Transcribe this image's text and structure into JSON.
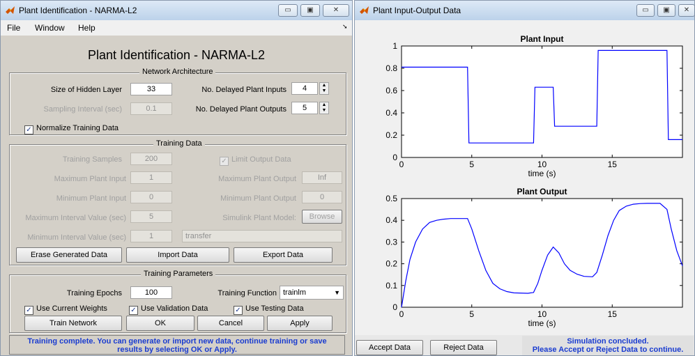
{
  "left_window": {
    "title": "Plant Identification - NARMA-L2",
    "window_buttons": [
      "▭",
      "▣",
      "✕"
    ],
    "menu": [
      "File",
      "Window",
      "Help"
    ],
    "menu_arrow": "➘",
    "heading": "Plant Identification - NARMA-L2",
    "network_architecture": {
      "title": "Network Architecture",
      "hidden_layer_label": "Size of Hidden Layer",
      "hidden_layer_value": "33",
      "sampling_label": "Sampling Interval (sec)",
      "sampling_value": "0.1",
      "delayed_inputs_label": "No. Delayed Plant Inputs",
      "delayed_inputs_value": "4",
      "delayed_outputs_label": "No. Delayed Plant Outputs",
      "delayed_outputs_value": "5",
      "normalize_label": "Normalize Training Data"
    },
    "training_data": {
      "title": "Training Data",
      "samples_label": "Training Samples",
      "samples_value": "200",
      "limit_label": "Limit Output Data",
      "max_input_label": "Maximum Plant Input",
      "max_input_value": "1",
      "max_output_label": "Maximum Plant Output",
      "max_output_value": "Inf",
      "min_input_label": "Minimum Plant Input",
      "min_input_value": "0",
      "min_output_label": "Minimum Plant Output",
      "min_output_value": "0",
      "max_interval_label": "Maximum Interval Value (sec)",
      "max_interval_value": "5",
      "simulink_label": "Simulink Plant Model:",
      "browse_label": "Browse",
      "min_interval_label": "Minimum Interval Value (sec)",
      "min_interval_value": "1",
      "model_value": "transfer",
      "erase_label": "Erase Generated Data",
      "import_label": "Import Data",
      "export_label": "Export Data"
    },
    "training_parameters": {
      "title": "Training Parameters",
      "epochs_label": "Training Epochs",
      "epochs_value": "100",
      "function_label": "Training Function",
      "function_value": "trainlm",
      "current_weights_label": "Use Current Weights",
      "validation_label": "Use Validation Data",
      "testing_label": "Use Testing Data",
      "train_label": "Train Network",
      "ok_label": "OK",
      "cancel_label": "Cancel",
      "apply_label": "Apply"
    },
    "status_line1": "Training complete. You can generate or import new data, continue training or save",
    "status_line2": "results by selecting OK or Apply."
  },
  "right_window": {
    "title": "Plant Input-Output Data",
    "window_buttons": [
      "▭",
      "▣",
      "✕"
    ],
    "accept_label": "Accept Data",
    "reject_label": "Reject Data",
    "status_line1": "Simulation concluded.",
    "status_line2": "Please Accept or Reject Data to continue."
  },
  "chart_data": [
    {
      "type": "line",
      "title": "Plant Input",
      "xlabel": "time (s)",
      "ylabel": "",
      "xlim": [
        0,
        20
      ],
      "ylim": [
        0,
        1
      ],
      "xticks": [
        0,
        5,
        10,
        15
      ],
      "yticks": [
        0,
        0.2,
        0.4,
        0.6,
        0.8,
        1
      ],
      "ytick_labels": [
        "0",
        "0.2",
        "0.4",
        "0.6",
        "0.8",
        "1"
      ],
      "color": "#0000ff",
      "x": [
        0,
        4.7,
        4.8,
        9.4,
        9.5,
        10.8,
        10.9,
        13.9,
        14.0,
        18.9,
        19.0,
        20
      ],
      "y": [
        0.81,
        0.81,
        0.13,
        0.13,
        0.63,
        0.63,
        0.28,
        0.28,
        0.96,
        0.96,
        0.16,
        0.16
      ]
    },
    {
      "type": "line",
      "title": "Plant Output",
      "xlabel": "time (s)",
      "ylabel": "",
      "xlim": [
        0,
        20
      ],
      "ylim": [
        0,
        0.5
      ],
      "xticks": [
        0,
        5,
        10,
        15
      ],
      "yticks": [
        0,
        0.1,
        0.2,
        0.3,
        0.4,
        0.5
      ],
      "ytick_labels": [
        "0",
        "0.1",
        "0.2",
        "0.3",
        "0.4",
        "0.5"
      ],
      "color": "#0000ff",
      "x": [
        0,
        0.3,
        0.6,
        1.0,
        1.5,
        2.0,
        2.5,
        3.0,
        3.5,
        4.0,
        4.7,
        5.0,
        5.5,
        6.0,
        6.5,
        7.0,
        7.5,
        8.0,
        9.0,
        9.4,
        9.7,
        10.0,
        10.4,
        10.8,
        11.2,
        11.6,
        12.0,
        12.5,
        13.0,
        13.6,
        13.9,
        14.3,
        14.7,
        15.1,
        15.5,
        16.0,
        16.5,
        17.0,
        17.5,
        18.0,
        18.4,
        18.9,
        19.2,
        19.6,
        20
      ],
      "y": [
        0.0,
        0.12,
        0.22,
        0.3,
        0.36,
        0.39,
        0.4,
        0.405,
        0.408,
        0.408,
        0.408,
        0.36,
        0.26,
        0.17,
        0.11,
        0.085,
        0.072,
        0.066,
        0.064,
        0.068,
        0.11,
        0.17,
        0.24,
        0.277,
        0.25,
        0.2,
        0.17,
        0.152,
        0.142,
        0.14,
        0.16,
        0.24,
        0.33,
        0.4,
        0.445,
        0.465,
        0.474,
        0.477,
        0.478,
        0.478,
        0.478,
        0.45,
        0.36,
        0.26,
        0.19
      ]
    }
  ]
}
